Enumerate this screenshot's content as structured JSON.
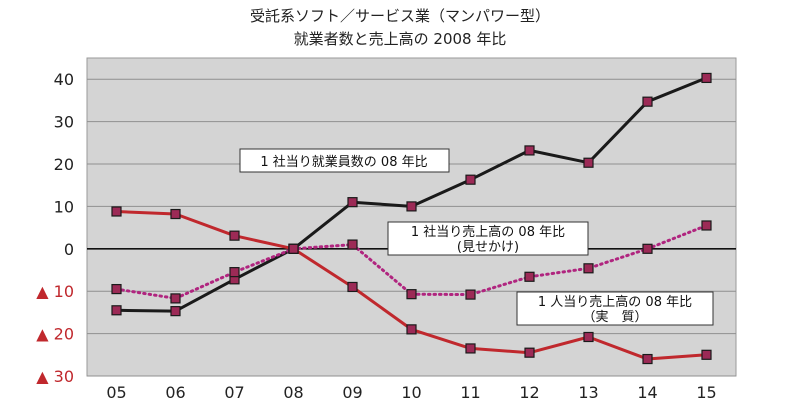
{
  "chart_data": {
    "type": "line",
    "title": "受託系ソフト／サービス業（マンパワー型）",
    "subtitle": "就業者数と売上高の 2008 年比",
    "categories": [
      "05",
      "06",
      "07",
      "08",
      "09",
      "10",
      "11",
      "12",
      "13",
      "14",
      "15"
    ],
    "ylim": [
      -30,
      45
    ],
    "yticks": [
      {
        "value": 40,
        "label": "40",
        "negative": false
      },
      {
        "value": 30,
        "label": "30",
        "negative": false
      },
      {
        "value": 20,
        "label": "20",
        "negative": false
      },
      {
        "value": 10,
        "label": "10",
        "negative": false
      },
      {
        "value": 0,
        "label": "0",
        "negative": false
      },
      {
        "value": -10,
        "label": "▲ 10",
        "negative": true
      },
      {
        "value": -20,
        "label": "▲ 20",
        "negative": true
      },
      {
        "value": -30,
        "label": "▲ 30",
        "negative": true
      }
    ],
    "grid": true,
    "series": [
      {
        "name": "1 社当り就業員数の 08 年比",
        "color": "#1a1a1a",
        "style": "solid",
        "values": [
          -14.5,
          -14.7,
          -7.2,
          0,
          11,
          10,
          16.3,
          23.2,
          20.3,
          34.7,
          40.3
        ]
      },
      {
        "name": "1 社当り売上高の 08 年比",
        "name2": "(見せかけ)",
        "color": "#b0257f",
        "style": "dotted",
        "values": [
          -9.5,
          -11.7,
          -5.5,
          0,
          1,
          -10.7,
          -10.8,
          -6.6,
          -4.6,
          0,
          5.5
        ]
      },
      {
        "name": "1 人当り売上高の 08 年比",
        "name2": "（実　質）",
        "color": "#c0282d",
        "style": "solid",
        "values": [
          8.8,
          8.2,
          3.1,
          0,
          -9,
          -19,
          -23.5,
          -24.5,
          -20.8,
          -26,
          -25
        ]
      }
    ]
  }
}
